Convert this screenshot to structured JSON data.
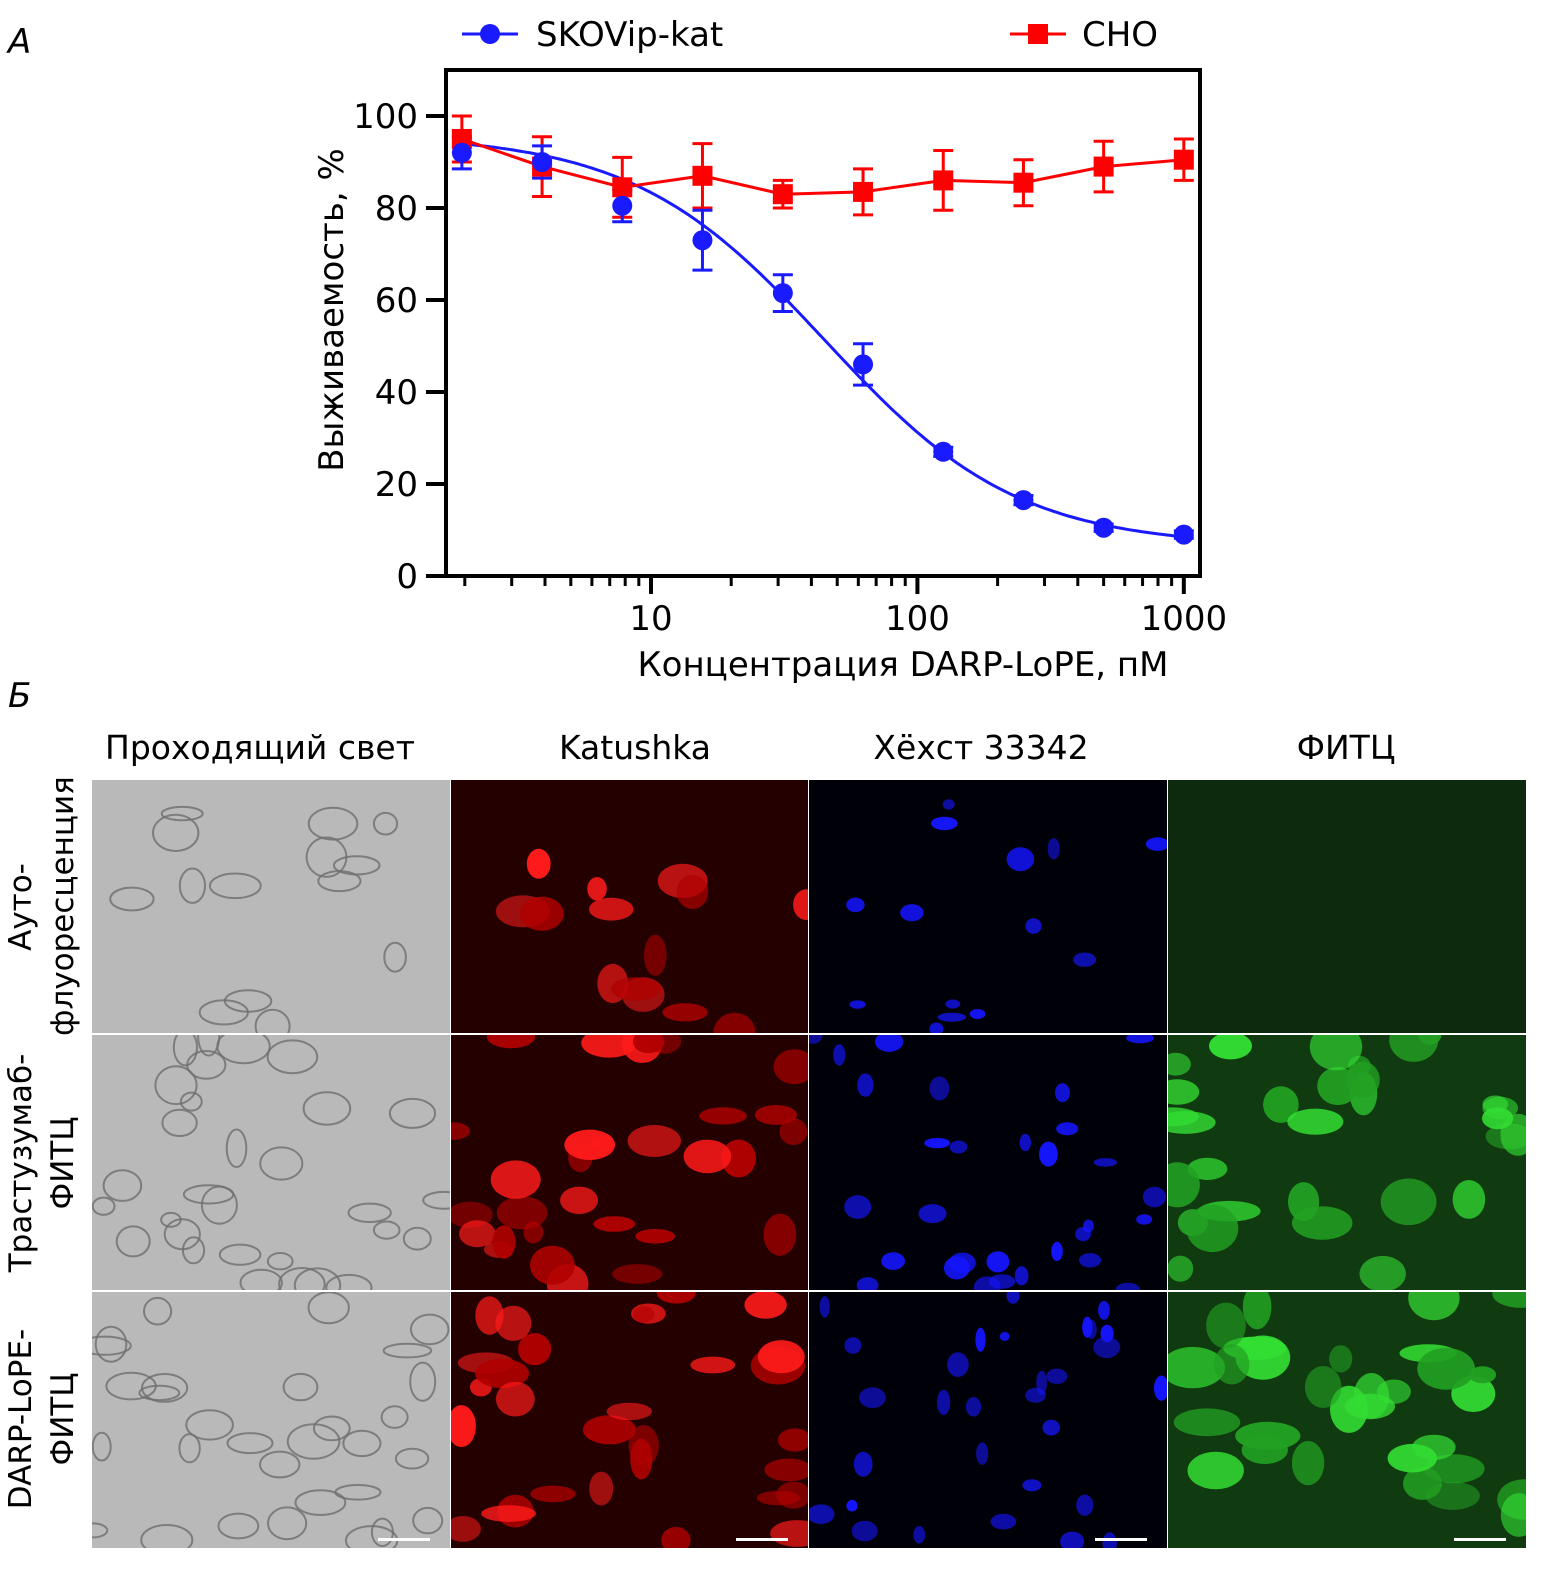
{
  "panel_labels": {
    "a": "А",
    "b": "Б"
  },
  "chart_data": {
    "type": "scatter",
    "xlabel": "Концентрация DARP-LoPE, пМ",
    "ylabel": "Выживаемость, %",
    "x_scale": "log",
    "xlim": [
      1.7,
      1150
    ],
    "ylim": [
      0,
      110
    ],
    "x_ticks": [
      10,
      100,
      1000
    ],
    "x_tick_labels": [
      "10",
      "100",
      "1000"
    ],
    "y_ticks": [
      0,
      20,
      40,
      60,
      80,
      100
    ],
    "y_tick_labels": [
      "0",
      "20",
      "40",
      "60",
      "80",
      "100"
    ],
    "grid": false,
    "legend_position": "top",
    "series": [
      {
        "name": "SKOVip-kat",
        "color": "#1a1aff",
        "marker": "circle",
        "line": "fitted sigmoid curve",
        "x": [
          1.95,
          3.9,
          7.8,
          15.6,
          31.25,
          62.5,
          125,
          250,
          500,
          1000
        ],
        "y": [
          92,
          90,
          80.5,
          73,
          61.5,
          46,
          27,
          16.5,
          10.5,
          9
        ],
        "error": [
          3.5,
          3.5,
          3.5,
          6.5,
          4,
          4.5,
          1,
          1,
          0.8,
          0.8
        ],
        "fit": {
          "top": 96,
          "bottom": 6.4,
          "ec50": 45,
          "hill": 1.2
        }
      },
      {
        "name": "CHO",
        "color": "#ff0000",
        "marker": "square",
        "line": "connecting",
        "x": [
          1.95,
          3.9,
          7.8,
          15.6,
          31.25,
          62.5,
          125,
          250,
          500,
          1000
        ],
        "y": [
          95,
          89,
          84.5,
          87,
          83,
          83.5,
          86,
          85.5,
          89,
          90.5
        ],
        "error": [
          5,
          6.5,
          6.5,
          7,
          3,
          5,
          6.5,
          5,
          5.5,
          4.5
        ]
      }
    ]
  },
  "microscopy": {
    "columns": [
      "Проходящий свет",
      "Katushka",
      "Хёхст 33342",
      "ФИТЦ"
    ],
    "rows": [
      {
        "line1": "Ауто-",
        "line2": "флуоресценция"
      },
      {
        "line1": "Трастузумаб-",
        "line2": "ФИТЦ"
      },
      {
        "line1": "DARP-LoPE-",
        "line2": "ФИТЦ"
      }
    ]
  }
}
